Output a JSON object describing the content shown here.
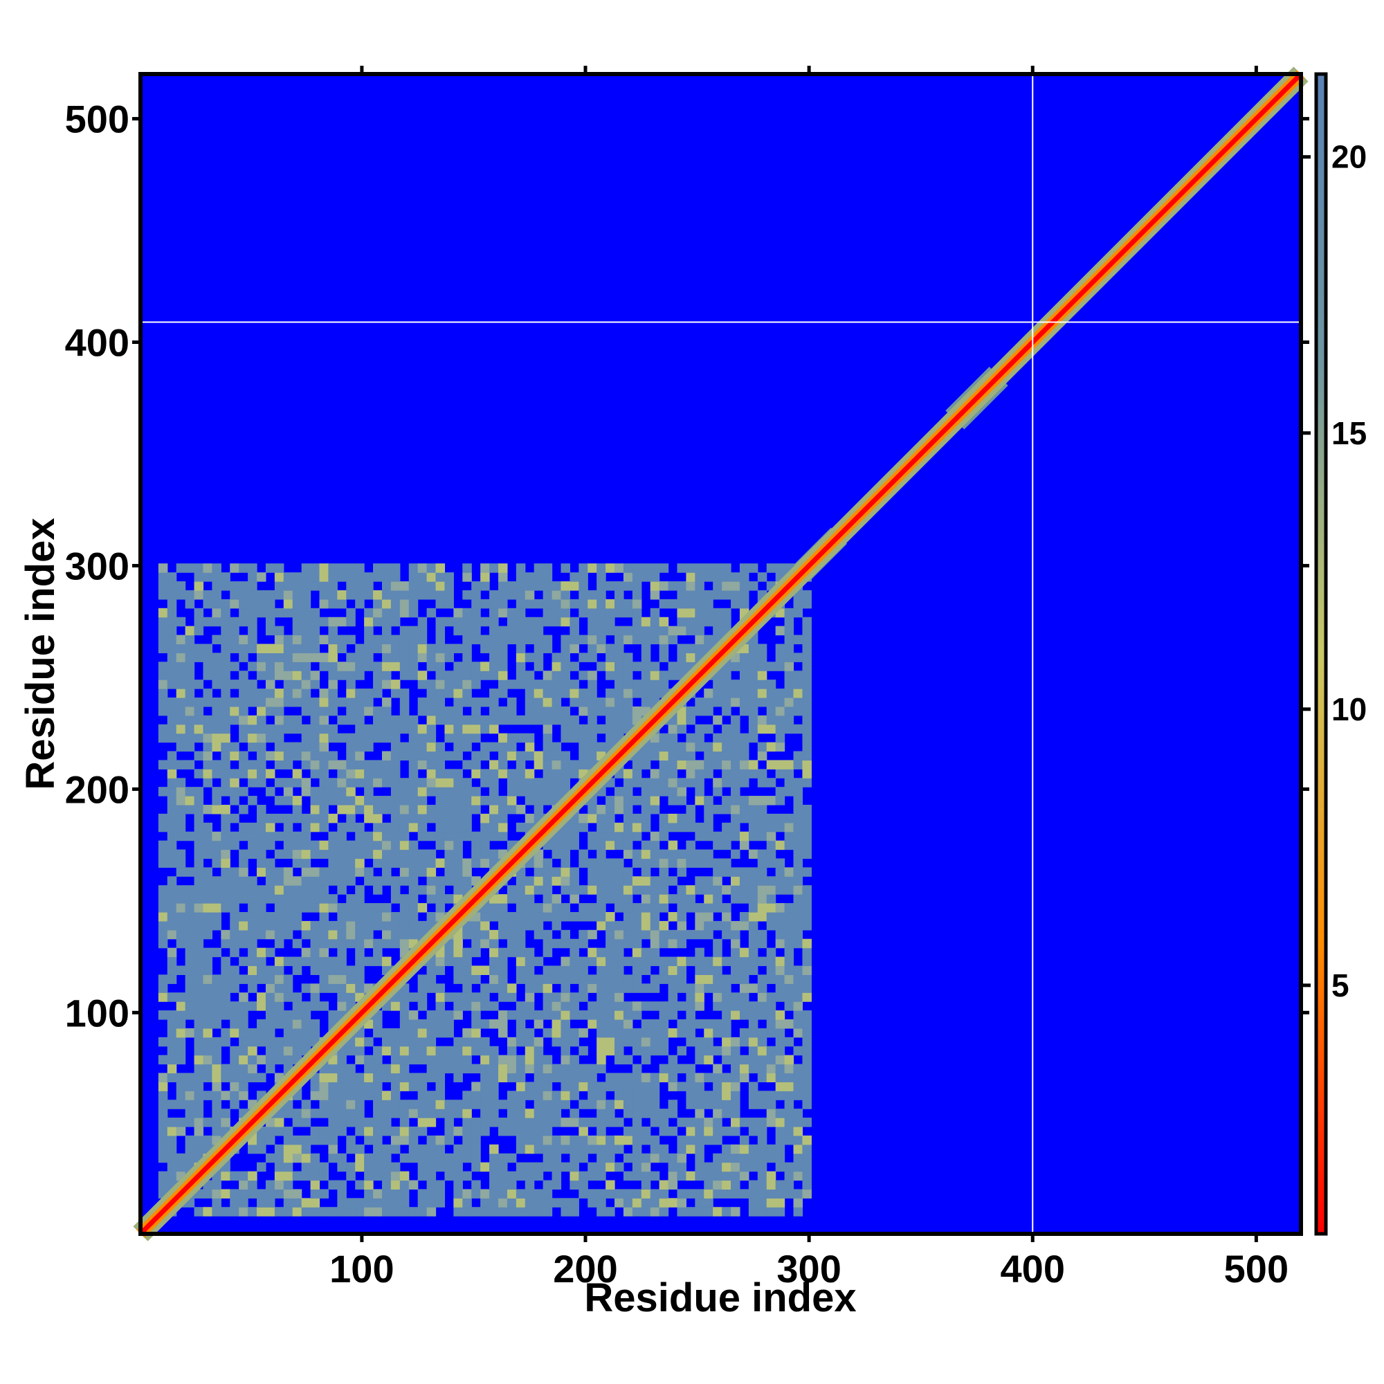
{
  "chart_data": {
    "type": "heatmap",
    "title": "",
    "xlabel": "Residue index",
    "ylabel": "Residue index",
    "xlim": [
      1,
      520
    ],
    "ylim": [
      1,
      520
    ],
    "x_ticks": [
      100,
      200,
      300,
      400,
      500
    ],
    "y_ticks": [
      100,
      200,
      300,
      400,
      500
    ],
    "colorbar": {
      "ticks": [
        5,
        10,
        15,
        20
      ],
      "range": [
        0.5,
        21.5
      ],
      "colors": [
        "#ff0000",
        "#ff8c00",
        "#c8c864",
        "#6e96a0",
        "#5a82b4"
      ]
    },
    "background_value": 21,
    "background_color": "#0000ff",
    "separator_lines": {
      "x": 400,
      "y": 409
    },
    "domain_blocks": [
      {
        "x": [
          8,
          165
        ],
        "y": [
          8,
          165
        ]
      },
      {
        "x": [
          100,
          165
        ],
        "y": [
          8,
          100
        ]
      },
      {
        "x": [
          8,
          100
        ],
        "y": [
          100,
          165
        ]
      },
      {
        "x": [
          165,
          300
        ],
        "y": [
          165,
          300
        ]
      },
      {
        "x": [
          165,
          300
        ],
        "y": [
          8,
          165
        ]
      },
      {
        "x": [
          8,
          165
        ],
        "y": [
          165,
          300
        ]
      }
    ],
    "diagonal_globules": [
      {
        "center": 305,
        "half_width": 12
      },
      {
        "center": 345,
        "half_width": 10
      },
      {
        "center": 375,
        "half_width": 14
      }
    ]
  }
}
